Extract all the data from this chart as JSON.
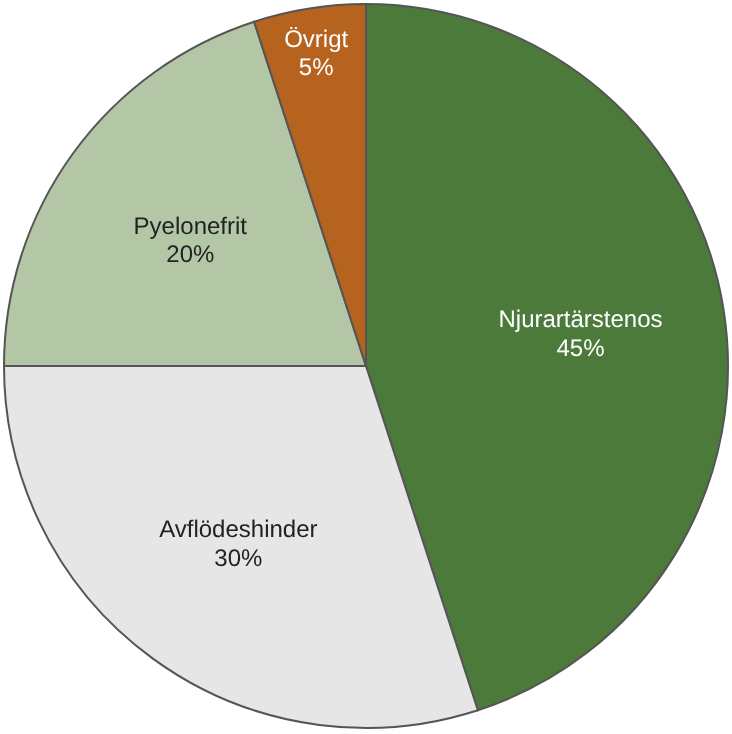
{
  "chart_data": {
    "type": "pie",
    "categories": [
      "Njurartärstenos",
      "Avflödeshinder",
      "Pyelonefrit",
      "Övrigt"
    ],
    "values": [
      45,
      30,
      20,
      5
    ],
    "colors": [
      "#4b7a3b",
      "#e6e6e6",
      "#b3c7a6",
      "#b5631f"
    ],
    "value_labels": [
      "45%",
      "30%",
      "20%",
      "5%"
    ]
  }
}
